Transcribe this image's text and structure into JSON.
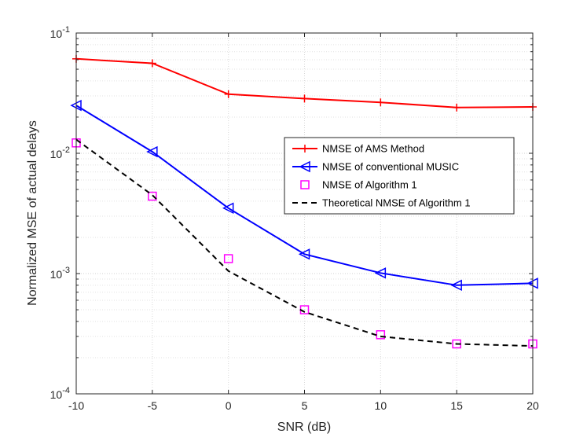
{
  "chart_data": {
    "type": "line",
    "title": "",
    "xlabel": "SNR (dB)",
    "ylabel": "Normalized MSE of actual delays",
    "x": [
      -10,
      -5,
      0,
      5,
      10,
      15,
      20
    ],
    "xlim": [
      -10,
      20
    ],
    "ylim": [
      0.0001,
      0.1
    ],
    "yscale": "log",
    "grid": true,
    "xtick_labels": [
      "-10",
      "-5",
      "0",
      "5",
      "10",
      "15",
      "20"
    ],
    "ytick_labels": [
      {
        "base": "10",
        "exp": "-4",
        "value": 0.0001
      },
      {
        "base": "10",
        "exp": "-3",
        "value": 0.001
      },
      {
        "base": "10",
        "exp": "-2",
        "value": 0.01
      },
      {
        "base": "10",
        "exp": "-1",
        "value": 0.1
      }
    ],
    "legend_position": "center-right",
    "series": [
      {
        "name": "NMSE of AMS Method",
        "color": "#ff0000",
        "marker": "plus",
        "line": "solid",
        "values": [
          0.061,
          0.056,
          0.031,
          0.0285,
          0.0265,
          0.024,
          0.0243
        ]
      },
      {
        "name": "NMSE of conventional MUSIC",
        "color": "#0000ff",
        "marker": "triangle-left",
        "line": "solid",
        "values": [
          0.025,
          0.0103,
          0.0035,
          0.00145,
          0.00101,
          0.0008,
          0.00083
        ]
      },
      {
        "name": "NMSE of Algorithm 1",
        "color": "#ff00ff",
        "marker": "square",
        "line": "none",
        "values": [
          0.0122,
          0.0044,
          0.00133,
          0.0005,
          0.00031,
          0.00026,
          0.00026
        ]
      },
      {
        "name": "Theoretical NMSE of Algorithm 1",
        "color": "#000000",
        "marker": "none",
        "line": "dashed",
        "values": [
          0.013,
          0.0045,
          0.00105,
          0.00048,
          0.0003,
          0.00026,
          0.00025
        ]
      }
    ]
  }
}
